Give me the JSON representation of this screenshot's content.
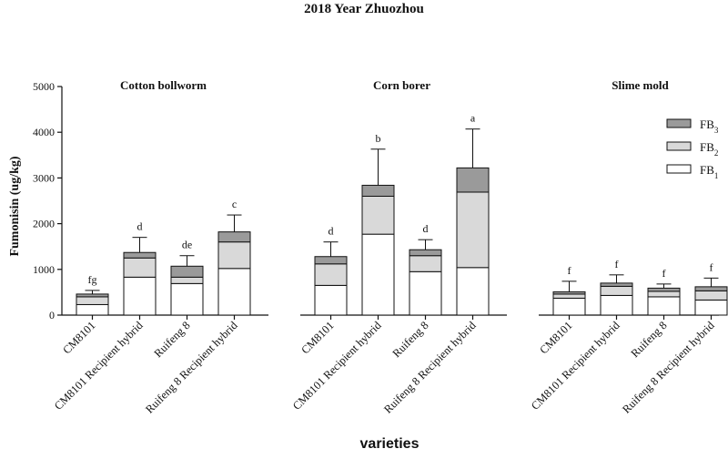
{
  "chart_data": {
    "type": "bar",
    "stacked": true,
    "title": "2018 Year Zhuozhou",
    "ylabel": "Fumonisin (ug/kg)",
    "xlabel": "varieties",
    "ylim": [
      0,
      5000
    ],
    "yticks": [
      0,
      1000,
      2000,
      3000,
      4000,
      5000
    ],
    "legend": {
      "position": "right",
      "entries": [
        {
          "key": "FB3",
          "base": "FB",
          "sub": "3",
          "color": "#9a9a9a"
        },
        {
          "key": "FB2",
          "base": "FB",
          "sub": "2",
          "color": "#d9d9d9"
        },
        {
          "key": "FB1",
          "base": "FB",
          "sub": "1",
          "color": "#ffffff"
        }
      ]
    },
    "groups": [
      {
        "name": "Cotton bollworm",
        "bars": [
          {
            "category": "CM8101",
            "FB1": 230,
            "FB2": 170,
            "FB3": 60,
            "error": 80,
            "letter": "fg"
          },
          {
            "category": "CM8101 Recipient hybrid",
            "FB1": 830,
            "FB2": 420,
            "FB3": 120,
            "error": 330,
            "letter": "d"
          },
          {
            "category": "Ruifeng 8",
            "FB1": 690,
            "FB2": 140,
            "FB3": 240,
            "error": 230,
            "letter": "de"
          },
          {
            "category": "Ruifeng 8 Recipient hybrid",
            "FB1": 1020,
            "FB2": 580,
            "FB3": 220,
            "error": 370,
            "letter": "c"
          }
        ]
      },
      {
        "name": "Corn borer",
        "bars": [
          {
            "category": "CM8101",
            "FB1": 650,
            "FB2": 470,
            "FB3": 160,
            "error": 320,
            "letter": "d"
          },
          {
            "category": "CM8101 Recipient hybrid",
            "FB1": 1770,
            "FB2": 830,
            "FB3": 240,
            "error": 790,
            "letter": "b"
          },
          {
            "category": "Ruifeng 8",
            "FB1": 950,
            "FB2": 350,
            "FB3": 130,
            "error": 220,
            "letter": "d"
          },
          {
            "category": "Ruifeng 8 Recipient hybrid",
            "FB1": 1040,
            "FB2": 1650,
            "FB3": 530,
            "error": 850,
            "letter": "a"
          }
        ]
      },
      {
        "name": "Slime mold",
        "bars": [
          {
            "category": "CM8101",
            "FB1": 370,
            "FB2": 90,
            "FB3": 50,
            "error": 230,
            "letter": "f"
          },
          {
            "category": "CM8101 Recipient hybrid",
            "FB1": 430,
            "FB2": 200,
            "FB3": 70,
            "error": 180,
            "letter": "f"
          },
          {
            "category": "Ruifeng 8",
            "FB1": 400,
            "FB2": 120,
            "FB3": 70,
            "error": 90,
            "letter": "f"
          },
          {
            "category": "Ruifeng 8 Recipient hybrid",
            "FB1": 330,
            "FB2": 200,
            "FB3": 90,
            "error": 190,
            "letter": "f"
          }
        ]
      }
    ]
  }
}
